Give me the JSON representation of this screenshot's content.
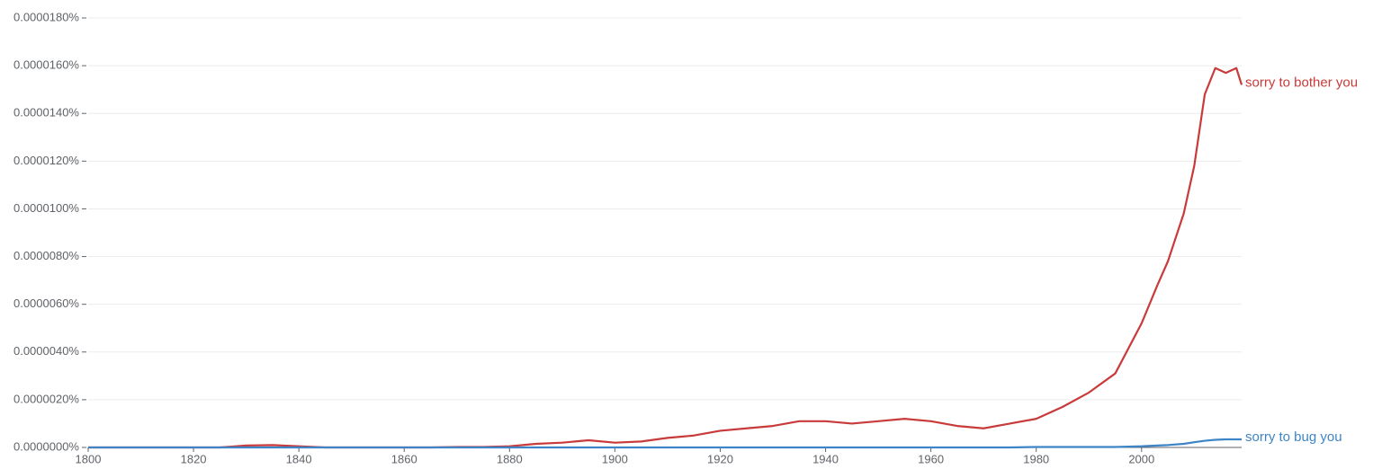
{
  "chart_data": {
    "type": "line",
    "x": [
      1800,
      1805,
      1810,
      1815,
      1820,
      1825,
      1830,
      1835,
      1840,
      1845,
      1850,
      1855,
      1860,
      1865,
      1870,
      1875,
      1880,
      1885,
      1890,
      1895,
      1900,
      1905,
      1910,
      1915,
      1920,
      1925,
      1930,
      1935,
      1940,
      1945,
      1950,
      1955,
      1960,
      1965,
      1970,
      1975,
      1980,
      1985,
      1990,
      1995,
      2000,
      2003,
      2005,
      2008,
      2010,
      2012,
      2014,
      2016,
      2018,
      2019
    ],
    "series": [
      {
        "name": "sorry to bother you",
        "color": "#c93a3a",
        "values": [
          0,
          0,
          0,
          0,
          0,
          0,
          8e-08,
          1e-07,
          5e-08,
          0,
          0,
          0,
          0,
          0,
          2e-08,
          2e-08,
          5e-08,
          1.5e-07,
          2e-07,
          3e-07,
          2e-07,
          2.5e-07,
          4e-07,
          5e-07,
          7e-07,
          8e-07,
          9e-07,
          1.1e-06,
          1.1e-06,
          1e-06,
          1.1e-06,
          1.2e-06,
          1.1e-06,
          9e-07,
          8e-07,
          1e-06,
          1.2e-06,
          1.7e-06,
          2.3e-06,
          3.1e-06,
          5.2e-06,
          6.8e-06,
          7.8e-06,
          9.8e-06,
          1.18e-05,
          1.48e-05,
          1.59e-05,
          1.57e-05,
          1.59e-05,
          1.52e-05
        ]
      },
      {
        "name": "sorry to bug you",
        "color": "#3d85c6",
        "values": [
          0,
          0,
          0,
          0,
          0,
          0,
          0,
          0,
          0,
          0,
          0,
          0,
          0,
          0,
          0,
          0,
          0,
          0,
          0,
          0,
          0,
          0,
          0,
          0,
          0,
          0,
          0,
          0,
          0,
          0,
          0,
          0,
          0,
          0,
          0,
          0,
          2e-08,
          2e-08,
          2e-08,
          2e-08,
          5e-08,
          8e-08,
          1e-07,
          1.5e-07,
          2.2e-07,
          2.8e-07,
          3.2e-07,
          3.4e-07,
          3.4e-07,
          3.4e-07
        ]
      }
    ],
    "xlim": [
      1800,
      2019
    ],
    "xticks": [
      1800,
      1820,
      1840,
      1860,
      1880,
      1900,
      1920,
      1940,
      1960,
      1980,
      2000
    ],
    "ylim": [
      0,
      1.8e-05
    ],
    "yticks": [
      {
        "value": 0,
        "label": "0.0000000%"
      },
      {
        "value": 2e-06,
        "label": "0.0000020%"
      },
      {
        "value": 4e-06,
        "label": "0.0000040%"
      },
      {
        "value": 6e-06,
        "label": "0.0000060%"
      },
      {
        "value": 8e-06,
        "label": "0.0000080%"
      },
      {
        "value": 1e-05,
        "label": "0.0000100%"
      },
      {
        "value": 1.2e-05,
        "label": "0.0000120%"
      },
      {
        "value": 1.4e-05,
        "label": "0.0000140%"
      },
      {
        "value": 1.6e-05,
        "label": "0.0000160%"
      },
      {
        "value": 1.8e-05,
        "label": "0.0000180%"
      }
    ],
    "grid": true
  }
}
